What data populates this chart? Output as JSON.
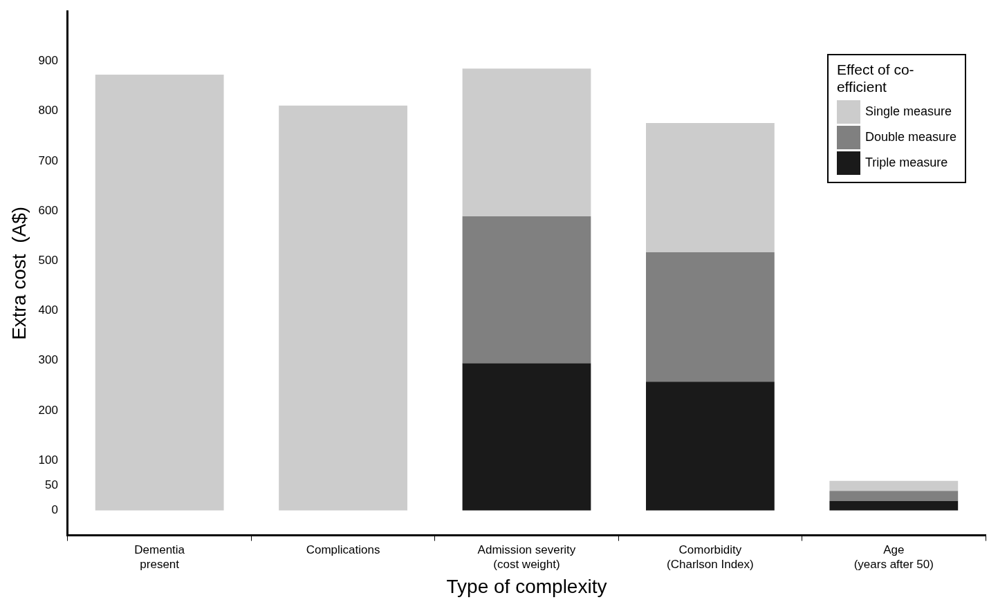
{
  "chart_data": {
    "type": "bar",
    "stacked": true,
    "xlabel": "Type of complexity",
    "ylabel": "Extra cost  (A$)",
    "legend_title": "Effect of co-efficient",
    "legend": "top right",
    "grid": false,
    "categories": [
      "Dementia\npresent",
      "Complications",
      "Admission severity\n(cost weight)",
      "Comorbidity\n(Charlson Index)",
      "Age\n(years after 50)"
    ],
    "series": [
      {
        "name": "Triple measure",
        "color": "#1a1a1a",
        "values": [
          null,
          null,
          295,
          258,
          19
        ]
      },
      {
        "name": "Double measure",
        "color": "#808080",
        "values": [
          null,
          null,
          294,
          259,
          20
        ]
      },
      {
        "name": "Single measure",
        "color": "#cccccc",
        "values": [
          873,
          811,
          296,
          259,
          20
        ]
      }
    ],
    "ylim": [
      -50,
      1000
    ],
    "yticks": [
      0,
      50,
      100,
      200,
      300,
      400,
      500,
      600,
      700,
      800,
      900
    ]
  }
}
